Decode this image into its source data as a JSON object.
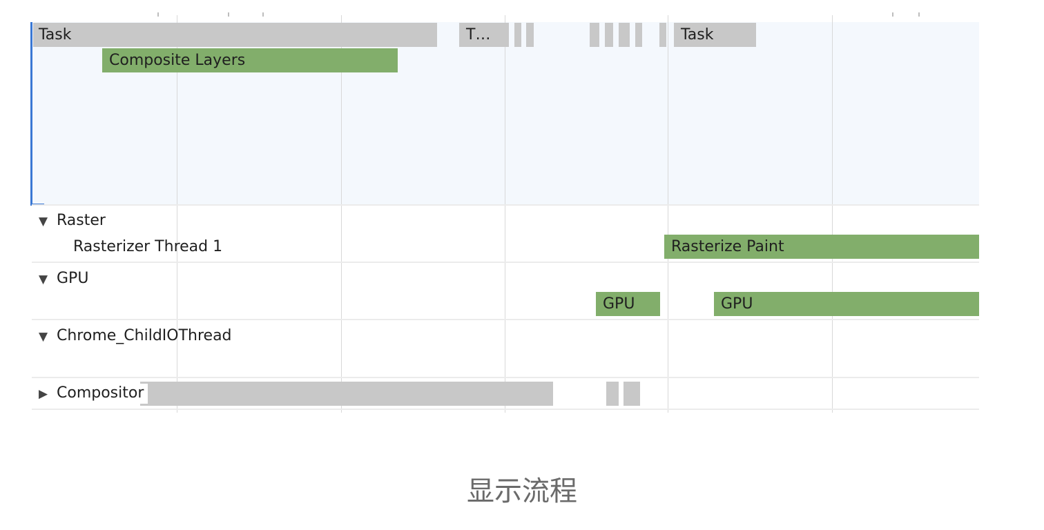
{
  "main": {
    "bars": {
      "task_1": "Task",
      "task_2": "T…",
      "task_3": "Task",
      "composite_layers": "Composite Layers"
    }
  },
  "tracks": {
    "raster": {
      "toggle": "▼",
      "title": "Raster",
      "thread": "Rasterizer Thread 1",
      "bar": "Rasterize Paint"
    },
    "gpu": {
      "toggle": "▼",
      "title": "GPU",
      "bar_1": "GPU",
      "bar_2": "GPU"
    },
    "io": {
      "toggle": "▼",
      "title": "Chrome_ChildIOThread"
    },
    "compositor": {
      "toggle": "▶",
      "title": "Compositor"
    }
  },
  "colors": {
    "task": "#c8c8c8",
    "painting": "#82ae6b",
    "selection": "#3a78d4"
  },
  "caption": "显示流程"
}
